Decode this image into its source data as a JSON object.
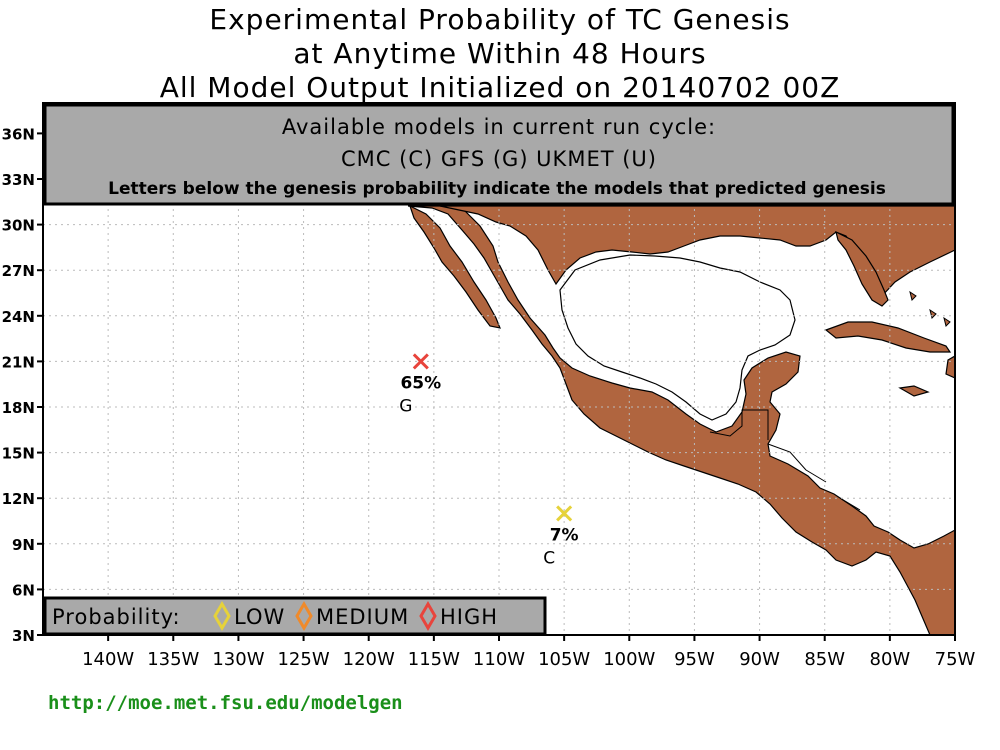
{
  "title": {
    "line1": "Experimental Probability of TC Genesis",
    "line2": "at Anytime Within 48 Hours",
    "line3": "All Model Output Initialized on 20140702 00Z"
  },
  "info_box": {
    "line1": "Available models in current run cycle:",
    "line2": "CMC (C) GFS (G)  UKMET (U)",
    "line3": "Letters below the genesis probability indicate the models that predicted genesis"
  },
  "axes": {
    "lat_labels": [
      "36N",
      "33N",
      "30N",
      "27N",
      "24N",
      "21N",
      "18N",
      "15N",
      "12N",
      "9N",
      "6N",
      "3N"
    ],
    "lon_labels": [
      "140W",
      "135W",
      "130W",
      "125W",
      "120W",
      "115W",
      "110W",
      "105W",
      "100W",
      "95W",
      "90W",
      "85W",
      "80W",
      "75W"
    ]
  },
  "legend": {
    "label": "Probability:",
    "items": [
      {
        "name": "LOW",
        "color": "#e6d23a"
      },
      {
        "name": "MEDIUM",
        "color": "#f08a2a"
      },
      {
        "name": "HIGH",
        "color": "#e8443c"
      }
    ]
  },
  "genesis_points": [
    {
      "lon": -116,
      "lat": 21,
      "probability": "65%",
      "models": "G",
      "level": "HIGH",
      "color": "#e8443c"
    },
    {
      "lon": -105,
      "lat": 11,
      "probability": "7%",
      "models": "C",
      "level": "LOW",
      "color": "#e6d23a"
    }
  ],
  "colors": {
    "land": "#b0653f",
    "grid": "#bbbbbb",
    "box": "#a9a9a9"
  },
  "url": "http://moe.met.fsu.edu/modelgen"
}
